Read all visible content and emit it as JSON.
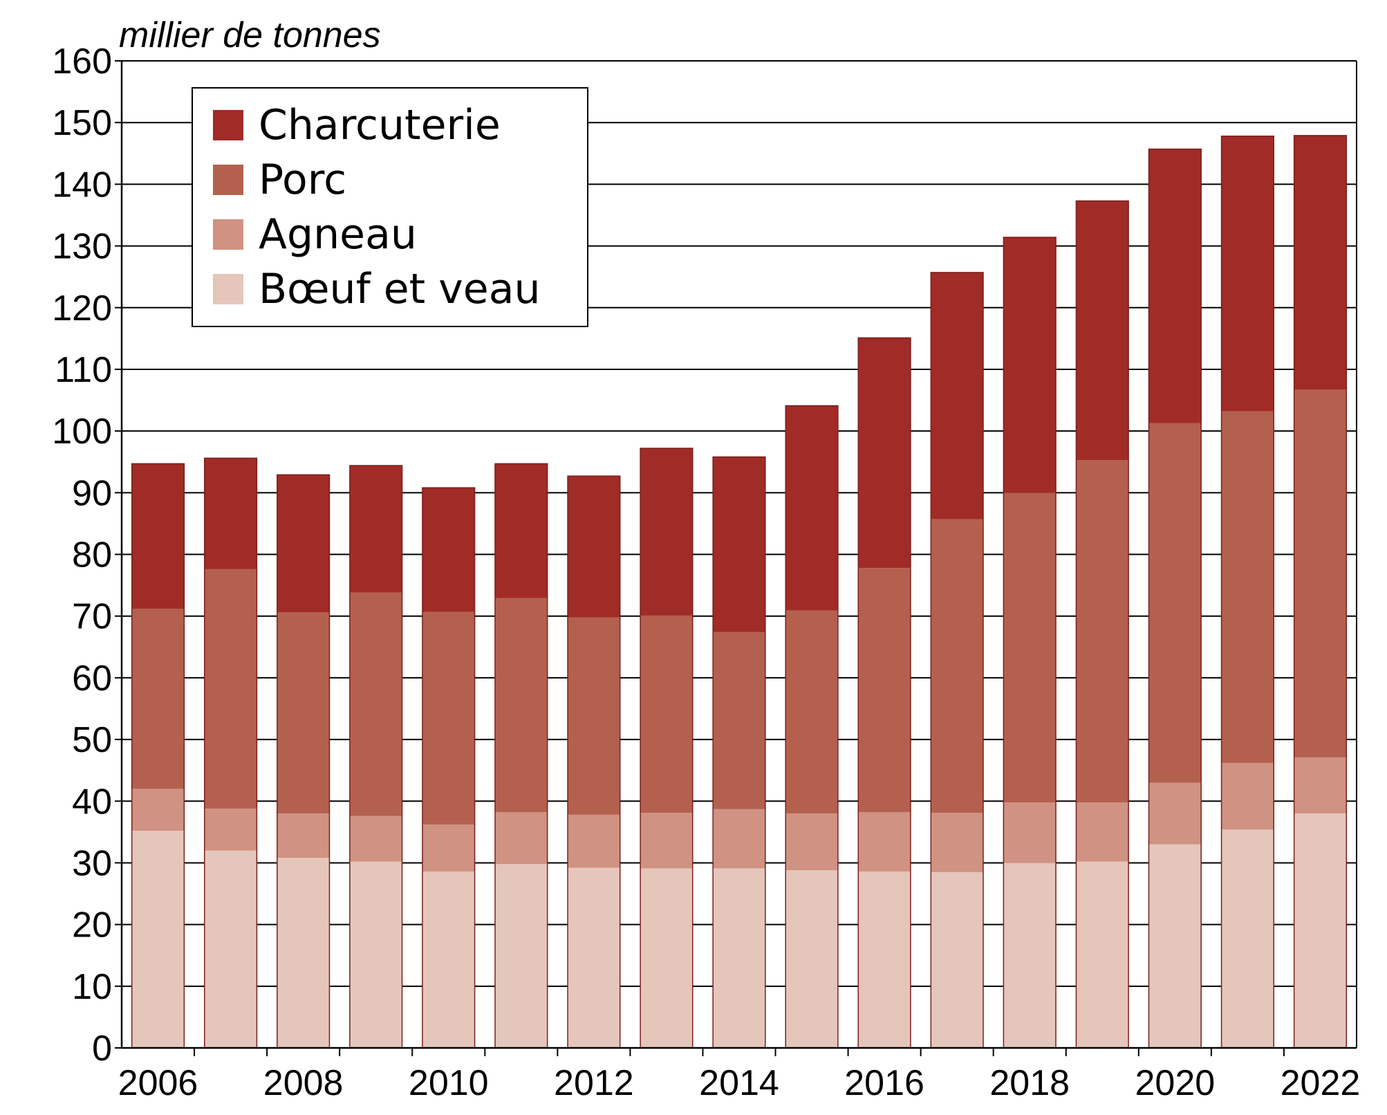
{
  "chart_data": {
    "type": "bar",
    "stacked": true,
    "title": "",
    "unit_label": "millier de tonnes",
    "xlabel": "",
    "ylabel": "",
    "ylim": [
      0,
      160
    ],
    "yticks": [
      0,
      10,
      20,
      30,
      40,
      50,
      60,
      70,
      80,
      90,
      100,
      110,
      120,
      130,
      140,
      150,
      160
    ],
    "categories": [
      "2006",
      "2007",
      "2008",
      "2009",
      "2010",
      "2011",
      "2012",
      "2013",
      "2014",
      "2015",
      "2016",
      "2017",
      "2018",
      "2019",
      "2020",
      "2021",
      "2022"
    ],
    "xtick_labels": [
      "2006",
      "2008",
      "2010",
      "2012",
      "2014",
      "2016",
      "2018",
      "2020",
      "2022"
    ],
    "grid": true,
    "legend_position": "top-left",
    "series": [
      {
        "name": "Bœuf et veau",
        "color": "#e5c6bb",
        "values": [
          35.2,
          32.0,
          30.8,
          30.2,
          28.6,
          29.8,
          29.2,
          29.1,
          29.1,
          28.8,
          28.6,
          28.5,
          30.0,
          30.2,
          33.0,
          35.4,
          38.0
        ]
      },
      {
        "name": "Agneau",
        "color": "#d09282",
        "values": [
          6.8,
          6.8,
          7.2,
          7.4,
          7.6,
          8.4,
          8.6,
          9.0,
          9.6,
          9.2,
          9.6,
          9.6,
          9.8,
          9.6,
          10.0,
          10.8,
          9.1
        ]
      },
      {
        "name": "Porc",
        "color": "#b4604f",
        "values": [
          29.2,
          38.8,
          32.6,
          36.2,
          34.5,
          34.7,
          32.0,
          32.0,
          28.7,
          32.9,
          39.6,
          47.6,
          50.2,
          55.5,
          58.3,
          57.0,
          59.6
        ]
      },
      {
        "name": "Charcuterie",
        "color": "#a02b27",
        "values": [
          23.5,
          18.0,
          22.3,
          20.6,
          20.1,
          21.8,
          22.9,
          27.1,
          28.4,
          33.2,
          37.3,
          40.0,
          41.4,
          42.0,
          44.4,
          44.6,
          41.2
        ]
      }
    ]
  }
}
